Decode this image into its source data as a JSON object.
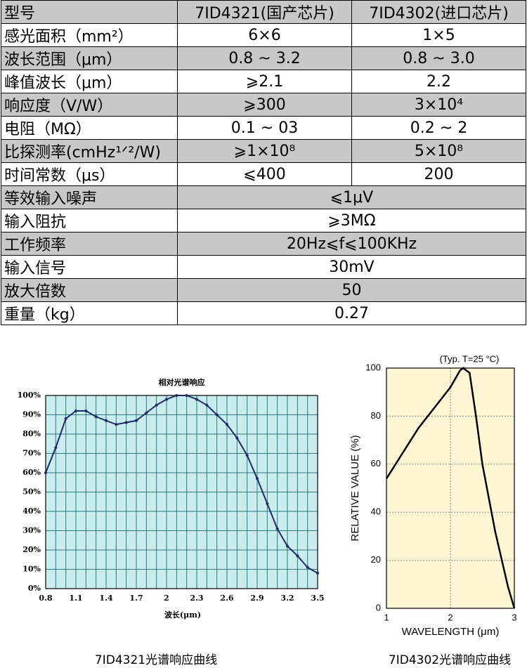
{
  "table": {
    "rows": [
      [
        "型号",
        "7ID4321(国产芯片)",
        "7ID4302(进口芯片)"
      ],
      [
        "感光面积（mm²）",
        "6×6",
        "1×5"
      ],
      [
        "波长范围（μm）",
        "0.8 ~ 3.2",
        "0.8 ~ 3.0"
      ],
      [
        "峰值波长（μm）",
        "⩾2.1",
        "2.2"
      ],
      [
        "响应度（V/W）",
        "⩾300",
        "3×10⁴"
      ],
      [
        "电阻（MΩ）",
        "0.1 ~ 03",
        "0.2 ~ 2"
      ],
      [
        "比探测率(cmHz¹ᐟ²/W)",
        "⩾1×10⁸",
        "5×10⁸"
      ],
      [
        "时间常数（μs）",
        "⩽400",
        "200"
      ],
      [
        "等效输入噪声",
        "⩽1μV"
      ],
      [
        "输入阻抗",
        "⩾3MΩ"
      ],
      [
        "工作频率",
        "20Hz⩽f⩽100KHz"
      ],
      [
        "输入信号",
        "30mV"
      ],
      [
        "放大倍数",
        "50"
      ],
      [
        "重量（kg）",
        "0.27"
      ]
    ]
  },
  "chart_data": [
    {
      "type": "line",
      "title": "相对光谱响应",
      "x_label": "波长(μm)",
      "caption": "7ID4321光谱响应曲线",
      "x": [
        0.8,
        0.9,
        1.0,
        1.1,
        1.2,
        1.3,
        1.4,
        1.5,
        1.6,
        1.7,
        1.8,
        1.9,
        2.0,
        2.1,
        2.2,
        2.3,
        2.4,
        2.5,
        2.6,
        2.7,
        2.8,
        2.9,
        3.0,
        3.1,
        3.2,
        3.3,
        3.4,
        3.5
      ],
      "series": [
        {
          "color": "#1f2a6b",
          "values": [
            60,
            73,
            88,
            92,
            92,
            89,
            87,
            85,
            86,
            87,
            91,
            95,
            98,
            100,
            100,
            98,
            95,
            90,
            85,
            78,
            69,
            57,
            44,
            31,
            22,
            17,
            11,
            8
          ]
        }
      ],
      "xlim": [
        0.8,
        3.5
      ],
      "xticks": [
        0.8,
        1.1,
        1.4,
        1.7,
        2.0,
        2.3,
        2.6,
        2.9,
        3.2,
        3.5
      ],
      "ylim": [
        0,
        100
      ],
      "yticks": [
        {
          "value": 0,
          "label": "0%"
        },
        {
          "value": 10,
          "label": "10%"
        },
        {
          "value": 20,
          "label": "20%"
        },
        {
          "value": 30,
          "label": "30%"
        },
        {
          "value": 40,
          "label": "40%"
        },
        {
          "value": 50,
          "label": "50%"
        },
        {
          "value": 60,
          "label": "60%"
        },
        {
          "value": 70,
          "label": "70%"
        },
        {
          "value": 80,
          "label": "80%"
        },
        {
          "value": 90,
          "label": "90%"
        },
        {
          "value": 100,
          "label": "100%"
        }
      ],
      "grid": true,
      "markers": true
    },
    {
      "type": "line",
      "annotation": "(Typ. T=25 °C)",
      "x_label": "WAVELENGTH (μm)",
      "y_label": "RELATIVE VALUE (%)",
      "caption": "7ID4302光谱响应曲线",
      "x": [
        1.0,
        1.5,
        2.0,
        2.15,
        2.2,
        2.3,
        2.4,
        2.5,
        2.7,
        2.9,
        3.0
      ],
      "series": [
        {
          "color": "#000000",
          "values": [
            54,
            75,
            92,
            99,
            100,
            98,
            80,
            60,
            32,
            9,
            0
          ]
        }
      ],
      "xlim": [
        1,
        3
      ],
      "xticks": [
        1,
        2,
        3
      ],
      "ylim": [
        0,
        100
      ],
      "yticks": [
        0,
        20,
        40,
        60,
        80,
        100
      ],
      "grid": true,
      "markers": false
    }
  ]
}
